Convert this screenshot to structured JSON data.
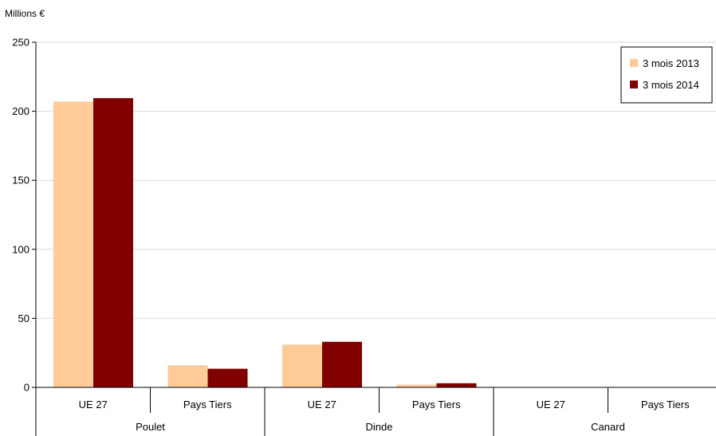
{
  "chart_data": {
    "type": "bar",
    "ylabel": "Millions €",
    "ylim": [
      0,
      250
    ],
    "yticks": [
      0,
      50,
      100,
      150,
      200,
      250
    ],
    "grid": true,
    "legend_position": "top-right",
    "groups": [
      {
        "label": "Poulet",
        "categories": [
          "UE 27",
          "Pays Tiers"
        ]
      },
      {
        "label": "Dinde",
        "categories": [
          "UE 27",
          "Pays Tiers"
        ]
      },
      {
        "label": "Canard",
        "categories": [
          "UE 27",
          "Pays Tiers"
        ]
      }
    ],
    "categories": [
      "UE 27",
      "Pays Tiers",
      "UE 27",
      "Pays Tiers",
      "UE 27",
      "Pays Tiers"
    ],
    "series": [
      {
        "name": "3 mois 2013",
        "color": "#FFCC99",
        "values": [
          207,
          16,
          31,
          2,
          0,
          0
        ]
      },
      {
        "name": "3 mois 2014",
        "color": "#800000",
        "values": [
          209.5,
          13.5,
          33,
          3,
          0,
          0
        ]
      }
    ]
  }
}
